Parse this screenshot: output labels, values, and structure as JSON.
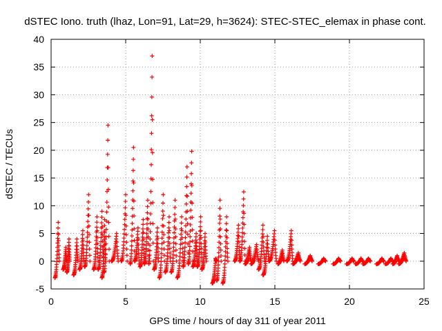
{
  "chart_data": {
    "type": "scatter",
    "title": "dSTEC Iono. truth (lhaz, Lon=91, Lat=29, h=3624): STEC-STEC_elemax in phase cont.",
    "xlabel": "GPS time / hours of day 311 of year 2011",
    "ylabel": "dSTEC  / TECUs",
    "xlim": [
      0,
      25
    ],
    "ylim": [
      -5,
      40
    ],
    "x_ticks": [
      0,
      5,
      10,
      15,
      20,
      25
    ],
    "y_ticks": [
      -5,
      0,
      5,
      10,
      15,
      20,
      25,
      30,
      35,
      40
    ],
    "grid": true,
    "marker": "+",
    "color": "#ff0000",
    "passes": [
      {
        "t0": 0.25,
        "t1": 0.55,
        "start": -3.0,
        "peak": 7.0,
        "end": 0.0
      },
      {
        "t0": 0.8,
        "t1": 1.05,
        "start": -1.5,
        "peak": 2.5,
        "end": 0.0
      },
      {
        "t0": 1.05,
        "t1": 1.25,
        "start": -2.0,
        "peak": 4.0,
        "end": 0.0
      },
      {
        "t0": 1.5,
        "t1": 1.8,
        "start": -2.5,
        "peak": 4.0,
        "end": 0.0
      },
      {
        "t0": 1.9,
        "t1": 2.2,
        "start": -1.5,
        "peak": 5.5,
        "end": 0.0
      },
      {
        "t0": 2.25,
        "t1": 2.6,
        "start": -1.0,
        "peak": 12.0,
        "end": 0.0
      },
      {
        "t0": 2.85,
        "t1": 3.15,
        "start": -1.5,
        "peak": 8.0,
        "end": 0.0
      },
      {
        "t0": 3.15,
        "t1": 3.5,
        "start": -1.5,
        "peak": 9.0,
        "end": 0.0
      },
      {
        "t0": 3.4,
        "t1": 3.65,
        "start": -3.0,
        "peak": 7.5,
        "end": 0.0
      },
      {
        "t0": 3.55,
        "t1": 3.9,
        "start": -2.0,
        "peak": 24.5,
        "end": 0.0
      },
      {
        "t0": 4.05,
        "t1": 4.5,
        "start": 0.0,
        "peak": 5.0,
        "end": 0.0
      },
      {
        "t0": 4.7,
        "t1": 5.1,
        "start": 0.0,
        "peak": 12.0,
        "end": 0.0
      },
      {
        "t0": 5.3,
        "t1": 5.6,
        "start": -0.5,
        "peak": 20.5,
        "end": 0.0
      },
      {
        "t0": 5.6,
        "t1": 5.9,
        "start": 0.0,
        "peak": 6.0,
        "end": -0.5
      },
      {
        "t0": 5.95,
        "t1": 6.25,
        "start": -1.0,
        "peak": 7.5,
        "end": 0.0
      },
      {
        "t0": 6.25,
        "t1": 6.55,
        "start": -0.5,
        "peak": 11.0,
        "end": 0.0
      },
      {
        "t0": 6.55,
        "t1": 6.85,
        "start": -0.5,
        "peak": 37.0,
        "end": 0.0
      },
      {
        "t0": 6.9,
        "t1": 7.2,
        "start": -1.5,
        "peak": 6.0,
        "end": 0.0
      },
      {
        "t0": 7.25,
        "t1": 7.6,
        "start": -3.0,
        "peak": 12.0,
        "end": 0.0
      },
      {
        "t0": 7.65,
        "t1": 8.0,
        "start": -2.0,
        "peak": 8.0,
        "end": 0.0
      },
      {
        "t0": 8.05,
        "t1": 8.4,
        "start": -2.0,
        "peak": 11.0,
        "end": 0.0
      },
      {
        "t0": 8.45,
        "t1": 8.85,
        "start": -3.0,
        "peak": 8.0,
        "end": 0.0
      },
      {
        "t0": 8.85,
        "t1": 9.2,
        "start": -1.0,
        "peak": 17.0,
        "end": 0.0
      },
      {
        "t0": 9.2,
        "t1": 9.5,
        "start": -0.5,
        "peak": 19.8,
        "end": 0.0
      },
      {
        "t0": 9.5,
        "t1": 9.8,
        "start": -1.0,
        "peak": 5.0,
        "end": 0.0
      },
      {
        "t0": 9.8,
        "t1": 10.1,
        "start": -1.0,
        "peak": 8.0,
        "end": 0.0
      },
      {
        "t0": 10.1,
        "t1": 10.4,
        "start": -1.5,
        "peak": 5.0,
        "end": 0.0
      },
      {
        "t0": 10.8,
        "t1": 11.1,
        "start": -4.0,
        "peak": 0.5,
        "end": 0.0
      },
      {
        "t0": 11.1,
        "t1": 11.4,
        "start": -3.5,
        "peak": 11.0,
        "end": 0.0
      },
      {
        "t0": 11.5,
        "t1": 11.85,
        "start": -4.0,
        "peak": 8.0,
        "end": 0.0
      },
      {
        "t0": 12.3,
        "t1": 12.65,
        "start": 0.0,
        "peak": 6.5,
        "end": 0.0
      },
      {
        "t0": 12.65,
        "t1": 13.0,
        "start": 0.0,
        "peak": 12.5,
        "end": 0.0
      },
      {
        "t0": 13.0,
        "t1": 13.4,
        "start": -0.5,
        "peak": 2.5,
        "end": 0.0
      },
      {
        "t0": 13.4,
        "t1": 13.9,
        "start": -0.5,
        "peak": 3.0,
        "end": 0.0
      },
      {
        "t0": 13.9,
        "t1": 14.3,
        "start": -1.5,
        "peak": 6.5,
        "end": 0.0
      },
      {
        "t0": 14.2,
        "t1": 14.6,
        "start": -2.5,
        "peak": 4.5,
        "end": 0.0
      },
      {
        "t0": 14.6,
        "t1": 15.1,
        "start": 0.0,
        "peak": 5.5,
        "end": 0.0
      },
      {
        "t0": 15.2,
        "t1": 15.6,
        "start": -0.5,
        "peak": 2.0,
        "end": 0.0
      },
      {
        "t0": 15.8,
        "t1": 16.2,
        "start": 0.0,
        "peak": 5.5,
        "end": 0.0
      },
      {
        "t0": 16.2,
        "t1": 16.7,
        "start": -0.5,
        "peak": 1.5,
        "end": 0.0
      },
      {
        "t0": 17.0,
        "t1": 17.5,
        "start": -0.5,
        "peak": 1.0,
        "end": 0.0
      },
      {
        "t0": 17.9,
        "t1": 18.4,
        "start": -0.5,
        "peak": 0.5,
        "end": 0.0
      },
      {
        "t0": 18.9,
        "t1": 19.4,
        "start": -0.5,
        "peak": 0.5,
        "end": 0.0
      },
      {
        "t0": 19.8,
        "t1": 20.3,
        "start": -0.5,
        "peak": 0.5,
        "end": 0.0
      },
      {
        "t0": 20.4,
        "t1": 20.9,
        "start": -0.5,
        "peak": 0.5,
        "end": 0.0
      },
      {
        "t0": 20.9,
        "t1": 21.4,
        "start": -0.5,
        "peak": 0.5,
        "end": 0.0
      },
      {
        "t0": 21.8,
        "t1": 22.3,
        "start": -0.5,
        "peak": 0.5,
        "end": 0.0
      },
      {
        "t0": 22.4,
        "t1": 22.9,
        "start": -0.5,
        "peak": 0.5,
        "end": 0.0
      },
      {
        "t0": 22.9,
        "t1": 23.3,
        "start": -0.5,
        "peak": 1.0,
        "end": 0.0
      },
      {
        "t0": 23.3,
        "t1": 23.8,
        "start": -0.5,
        "peak": 1.5,
        "end": 0.0
      }
    ]
  }
}
